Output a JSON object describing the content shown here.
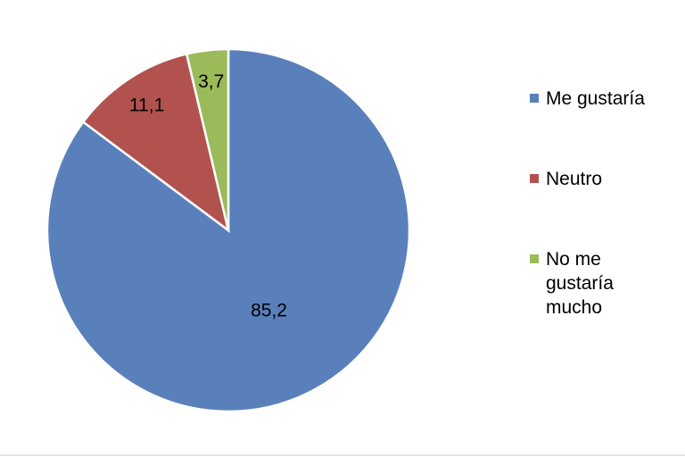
{
  "chart_data": {
    "type": "pie",
    "categories": [
      "Me gustaría",
      "Neutro",
      "No me gustaría mucho"
    ],
    "values": [
      85.2,
      11.1,
      3.7
    ],
    "value_labels": [
      "85,2",
      "11,1",
      "3,7"
    ],
    "colors": [
      "#5a80bb",
      "#b2524e",
      "#9bbb5a"
    ],
    "legend": "right"
  }
}
